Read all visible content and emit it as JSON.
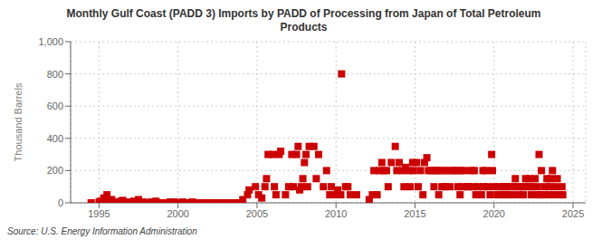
{
  "chart_data": {
    "type": "scatter",
    "title": "Monthly Gulf Coast (PADD 3) Imports by PADD of Processing from Japan of Total Petroleum\nProducts",
    "ylabel": "Thousand Barrels",
    "annotation": "Source: U.S. Energy Information Administration",
    "color": "#cc0000",
    "marker": "square",
    "grid": true,
    "xlim": [
      1993.2,
      2025.8
    ],
    "xticks": [
      1995,
      2000,
      2005,
      2010,
      2015,
      2020,
      2025
    ],
    "ylim": [
      0,
      1000
    ],
    "yticks": [
      0,
      200,
      400,
      600,
      800,
      {
        "value": 1000,
        "label": "1,000"
      }
    ],
    "x": [
      1994.5,
      1995.0,
      1995.1,
      1995.2,
      1995.3,
      1995.4,
      1995.5,
      1995.6,
      1995.7,
      1995.8,
      1995.9,
      1996.0,
      1996.1,
      1996.2,
      1996.3,
      1996.4,
      1996.5,
      1996.6,
      1996.7,
      1996.8,
      1996.9,
      1997.0,
      1997.1,
      1997.2,
      1997.3,
      1997.4,
      1997.5,
      1997.6,
      1997.7,
      1997.8,
      1997.9,
      1998.0,
      1998.1,
      1998.2,
      1998.3,
      1998.4,
      1998.5,
      1998.6,
      1998.7,
      1998.8,
      1998.9,
      1999.0,
      1999.1,
      1999.2,
      1999.3,
      1999.4,
      1999.5,
      1999.6,
      1999.7,
      1999.8,
      1999.9,
      2000.0,
      2000.1,
      2000.2,
      2000.3,
      2000.4,
      2000.5,
      2000.6,
      2000.7,
      2000.8,
      2000.9,
      2001.0,
      2001.1,
      2001.2,
      2001.3,
      2001.4,
      2001.5,
      2001.6,
      2001.7,
      2001.8,
      2001.9,
      2002.0,
      2002.1,
      2002.2,
      2002.3,
      2002.4,
      2002.5,
      2002.6,
      2002.7,
      2002.8,
      2002.9,
      2003.0,
      2003.1,
      2003.2,
      2003.3,
      2003.4,
      2003.5,
      2003.6,
      2003.7,
      2003.8,
      2003.9,
      2004.1,
      2004.4,
      2004.5,
      2004.9,
      2005.1,
      2005.3,
      2005.5,
      2005.6,
      2005.7,
      2006.0,
      2006.1,
      2006.2,
      2006.4,
      2006.5,
      2006.8,
      2007.0,
      2007.2,
      2007.3,
      2007.5,
      2007.6,
      2007.7,
      2007.8,
      2007.9,
      2008.0,
      2008.1,
      2008.2,
      2008.3,
      2008.6,
      2008.75,
      2008.9,
      2009.2,
      2009.4,
      2009.6,
      2009.7,
      2010.0,
      2010.1,
      2010.3,
      2010.35,
      2010.6,
      2010.75,
      2010.9,
      2011.3,
      2012.1,
      2012.3,
      2012.4,
      2012.6,
      2012.75,
      2012.9,
      2013.0,
      2013.2,
      2013.3,
      2013.5,
      2013.75,
      2013.85,
      2014.0,
      2014.2,
      2014.3,
      2014.4,
      2014.6,
      2014.7,
      2014.85,
      2014.9,
      2015.1,
      2015.2,
      2015.35,
      2015.5,
      2015.6,
      2015.75,
      2015.85,
      2016.0,
      2016.2,
      2016.3,
      2016.4,
      2016.5,
      2016.6,
      2016.7,
      2016.85,
      2016.9,
      2017.1,
      2017.2,
      2017.35,
      2017.5,
      2017.7,
      2017.75,
      2017.85,
      2017.9,
      2018.0,
      2018.2,
      2018.3,
      2018.4,
      2018.6,
      2018.7,
      2018.75,
      2018.85,
      2019.0,
      2019.2,
      2019.3,
      2019.35,
      2019.5,
      2019.6,
      2019.75,
      2019.85,
      2019.9,
      2020.0,
      2020.2,
      2020.3,
      2020.4,
      2020.6,
      2020.7,
      2020.75,
      2020.9,
      2021.0,
      2021.2,
      2021.3,
      2021.35,
      2021.5,
      2021.6,
      2021.75,
      2021.85,
      2021.9,
      2022.0,
      2022.2,
      2022.25,
      2022.35,
      2022.4,
      2022.6,
      2022.7,
      2022.75,
      2022.85,
      2022.9,
      2023.0,
      2023.1,
      2023.2,
      2023.35,
      2023.4,
      2023.5,
      2023.6,
      2023.7,
      2023.75,
      2023.85,
      2024.0,
      2024.1,
      2024.3,
      2024.35
    ],
    "values": [
      0,
      5,
      10,
      0,
      30,
      5,
      50,
      10,
      0,
      20,
      5,
      0,
      0,
      5,
      0,
      10,
      15,
      0,
      0,
      5,
      0,
      0,
      0,
      10,
      0,
      0,
      20,
      0,
      0,
      5,
      0,
      0,
      0,
      0,
      5,
      0,
      0,
      10,
      0,
      0,
      0,
      0,
      0,
      0,
      0,
      0,
      5,
      0,
      0,
      5,
      0,
      0,
      0,
      0,
      5,
      0,
      0,
      0,
      0,
      0,
      5,
      0,
      0,
      0,
      0,
      0,
      0,
      0,
      0,
      0,
      0,
      0,
      0,
      0,
      0,
      0,
      0,
      0,
      0,
      0,
      0,
      0,
      0,
      0,
      0,
      0,
      0,
      0,
      0,
      0,
      0,
      20,
      50,
      80,
      100,
      50,
      30,
      100,
      150,
      300,
      300,
      100,
      50,
      300,
      320,
      50,
      100,
      300,
      100,
      300,
      350,
      80,
      100,
      150,
      250,
      300,
      100,
      350,
      350,
      150,
      300,
      100,
      200,
      50,
      100,
      50,
      80,
      50,
      800,
      100,
      100,
      50,
      50,
      20,
      50,
      200,
      50,
      200,
      250,
      200,
      200,
      100,
      250,
      350,
      200,
      250,
      200,
      100,
      220,
      200,
      100,
      250,
      200,
      250,
      100,
      200,
      50,
      250,
      280,
      200,
      200,
      100,
      200,
      200,
      50,
      200,
      100,
      200,
      100,
      200,
      100,
      200,
      200,
      100,
      200,
      50,
      200,
      100,
      200,
      100,
      100,
      200,
      100,
      200,
      50,
      100,
      50,
      200,
      100,
      200,
      100,
      50,
      300,
      200,
      100,
      50,
      100,
      50,
      100,
      50,
      100,
      50,
      100,
      50,
      100,
      150,
      100,
      50,
      100,
      50,
      100,
      150,
      100,
      150,
      50,
      100,
      150,
      50,
      100,
      300,
      50,
      200,
      50,
      100,
      150,
      50,
      100,
      150,
      200,
      50,
      100,
      150,
      50,
      100,
      50
    ]
  }
}
